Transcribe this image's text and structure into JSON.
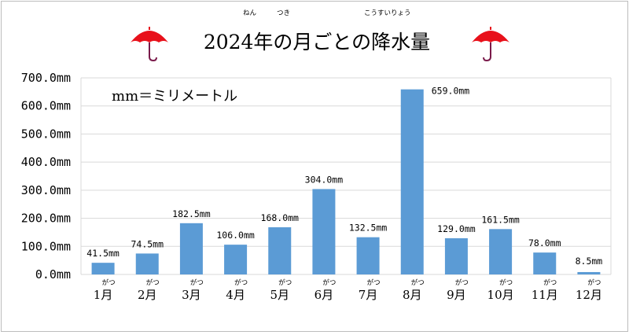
{
  "chart_data": {
    "type": "bar",
    "title": "2024年の月ごとの降水量",
    "title_ruby": [
      "ねん",
      "つき",
      "こうすいりょう"
    ],
    "note": "mm＝ミリメートル",
    "categories": [
      "1月",
      "2月",
      "3月",
      "4月",
      "5月",
      "6月",
      "7月",
      "8月",
      "9月",
      "10月",
      "11月",
      "12月"
    ],
    "category_ruby": "がつ",
    "values": [
      41.5,
      74.5,
      182.5,
      106.0,
      168.0,
      304.0,
      132.5,
      659.0,
      129.0,
      161.5,
      78.0,
      8.5
    ],
    "value_labels": [
      "41.5mm",
      "74.5mm",
      "182.5mm",
      "106.0mm",
      "168.0mm",
      "304.0mm",
      "132.5mm",
      "659.0mm",
      "129.0mm",
      "161.5mm",
      "78.0mm",
      "8.5mm"
    ],
    "yticks": [
      "0.0mm",
      "100.0mm",
      "200.0mm",
      "300.0mm",
      "400.0mm",
      "500.0mm",
      "600.0mm",
      "700.0mm"
    ],
    "ylim": [
      0,
      700
    ],
    "grid": true,
    "colors": {
      "bar": "#5b9bd5",
      "grid": "#d9d9d9",
      "max_label": "#ff0000",
      "min_label": "#0070c0",
      "umbrella": "#e8111b"
    }
  }
}
